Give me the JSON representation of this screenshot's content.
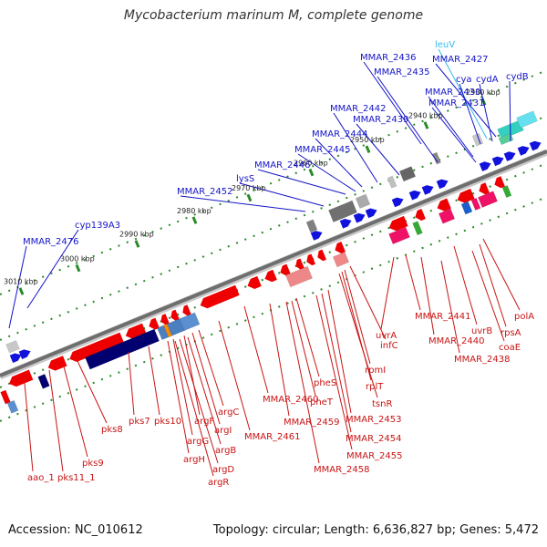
{
  "title": "Mycobacterium marinum M, complete genome",
  "footer": {
    "accession": "Accession: NC_010612",
    "summary": "Topology: circular; Length: 6,636,827 bp; Genes: 5,472"
  },
  "colors": {
    "top_label": "#1414c8",
    "top_label_alt": "#33bbee",
    "bottom_label": "#c81414",
    "kbp_tick": "#2a8a2a",
    "backbone": "#6e6e6e"
  },
  "kbp_ticks": [
    "3010 kbp",
    "3000 kbp",
    "2990 kbp",
    "2980 kbp",
    "2970 kbp",
    "2960 kbp",
    "2950 kbp",
    "2940 kbp",
    "2930 kbp"
  ],
  "top_labels": [
    {
      "text": "leuV",
      "alt": true
    },
    {
      "text": "MMAR_2436"
    },
    {
      "text": "MMAR_2427"
    },
    {
      "text": "MMAR_2435"
    },
    {
      "text": "cya"
    },
    {
      "text": "cydA"
    },
    {
      "text": "cydB"
    },
    {
      "text": "MMAR_2430"
    },
    {
      "text": "MMAR_2431"
    },
    {
      "text": "MMAR_2442"
    },
    {
      "text": "MMAR_2439"
    },
    {
      "text": "MMAR_2444"
    },
    {
      "text": "MMAR_2445"
    },
    {
      "text": "MMAR_2446"
    },
    {
      "text": "lysS"
    },
    {
      "text": "MMAR_2452"
    },
    {
      "text": "cyp139A3"
    },
    {
      "text": "MMAR_2476"
    }
  ],
  "bottom_labels": [
    {
      "text": "polA"
    },
    {
      "text": "rpsA"
    },
    {
      "text": "MMAR_2441"
    },
    {
      "text": "uvrB"
    },
    {
      "text": "coaE"
    },
    {
      "text": "MMAR_2440"
    },
    {
      "text": "MMAR_2438"
    },
    {
      "text": "uvrA"
    },
    {
      "text": "infC"
    },
    {
      "text": "rpmI"
    },
    {
      "text": "rplT"
    },
    {
      "text": "tsnR"
    },
    {
      "text": "pheS"
    },
    {
      "text": "pheT"
    },
    {
      "text": "MMAR_2453"
    },
    {
      "text": "MMAR_2460"
    },
    {
      "text": "MMAR_2459"
    },
    {
      "text": "MMAR_2454"
    },
    {
      "text": "MMAR_2455"
    },
    {
      "text": "MMAR_2461"
    },
    {
      "text": "MMAR_2458"
    },
    {
      "text": "argC"
    },
    {
      "text": "argI"
    },
    {
      "text": "argF"
    },
    {
      "text": "argB"
    },
    {
      "text": "argG"
    },
    {
      "text": "argH"
    },
    {
      "text": "argD"
    },
    {
      "text": "argR"
    },
    {
      "text": "pks10"
    },
    {
      "text": "pks7"
    },
    {
      "text": "pks8"
    },
    {
      "text": "pks9"
    },
    {
      "text": "pks11_1"
    },
    {
      "text": "aao_1"
    }
  ]
}
